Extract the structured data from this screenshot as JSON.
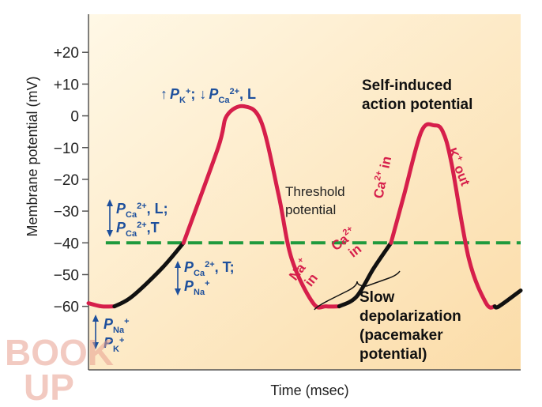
{
  "chart_data": {
    "type": "line",
    "title": "",
    "xlabel": "Time (msec)",
    "ylabel": "Membrane potential (mV)",
    "ylim": [
      -80,
      32
    ],
    "y_ticks": [
      "+20",
      "+10",
      "0",
      "−10",
      "−20",
      "−30",
      "−40",
      "−50",
      "−60"
    ],
    "y_tick_values": [
      20,
      10,
      0,
      -10,
      -20,
      -30,
      -40,
      -50,
      -60
    ],
    "threshold": {
      "value": -40,
      "color": "#1f9a3d",
      "style": "dashed"
    },
    "series": [
      {
        "color_slow": "#111111",
        "color_spike": "#d61f4b",
        "x": [
          0,
          3,
          6,
          10,
          17,
          22,
          30,
          32,
          36,
          40,
          44,
          47,
          52,
          55,
          58,
          62,
          66,
          70,
          73,
          77,
          80,
          82,
          84,
          88,
          92,
          94,
          95,
          100
        ],
        "y": [
          -59,
          -60,
          -60,
          -57,
          -48,
          -40,
          -10,
          0,
          3,
          -2,
          -25,
          -45,
          -59,
          -60,
          -60,
          -57,
          -48,
          -40,
          -25,
          -5,
          -3,
          -5,
          -15,
          -45,
          -59,
          -60,
          -60,
          -55
        ]
      }
    ]
  },
  "labels": {
    "spike_top": {
      "up": "↑",
      "p1": "P",
      "k": "K",
      "plus": "+",
      "sep": ";",
      "down": "↓",
      "p2": "P",
      "ca": "Ca",
      "ca_sup": "2+",
      "tail": ", L"
    },
    "left_mid": {
      "l1_p": "P",
      "l1_ca": "Ca",
      "l1_sup": "2+",
      "l1_tail": ", L;",
      "l2_p": "P",
      "l2_ca": "Ca",
      "l2_sup": "2+",
      "l2_tail": ",T"
    },
    "center_mid": {
      "l1_p": "P",
      "l1_ca": "Ca",
      "l1_sup": "2+",
      "l1_tail": ", T;",
      "l2_p": "P",
      "l2_na": "Na",
      "l2_sup": "+"
    },
    "left_low": {
      "l1_p": "P",
      "l1_na": "Na",
      "l1_sup": "+",
      "l2_p": "P",
      "l2_k": "K",
      "l2_sup": "+"
    },
    "threshold_1": "Threshold",
    "threshold_2": "potential",
    "self_induced_1": "Self-induced",
    "self_induced_2": "action potential",
    "slow_1": "Slow",
    "slow_2": "depolarization",
    "slow_3": "(pacemaker",
    "slow_4": "potential)",
    "na_in_1": "Na",
    "na_in_sup": "+",
    "na_in_2": "in",
    "ca_in_mid_1": "Ca",
    "ca_in_mid_sup": "2+",
    "ca_in_mid_2": "in",
    "ca_in_rise": "Ca",
    "ca_in_rise_sup": "2+",
    "ca_in_rise_tail": " in",
    "k_out": "K",
    "k_out_sup": "+",
    "k_out_tail": " out"
  },
  "watermark": {
    "line1": "BOOK",
    "line2": "UP"
  }
}
